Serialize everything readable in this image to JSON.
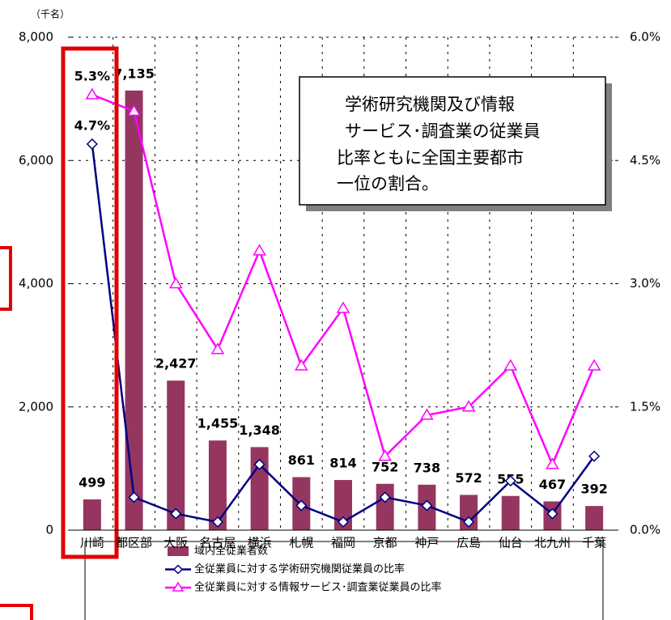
{
  "chart_data": {
    "type": "bar",
    "unit_label": "（千名）",
    "annotation": [
      "学術研究機関及び情報",
      "サービス･調査業の従業員",
      "比率ともに全国主要都市",
      "一位の割合。"
    ],
    "categories": [
      "川崎",
      "都区部",
      "大阪",
      "名古屋",
      "横浜",
      "札幌",
      "福岡",
      "京都",
      "神戸",
      "広島",
      "仙台",
      "北九州",
      "千葉"
    ],
    "series": [
      {
        "name": "域内全従業者数",
        "type": "bar",
        "color": "#953660",
        "values": [
          499,
          7135,
          2427,
          1455,
          1348,
          861,
          814,
          752,
          738,
          572,
          555,
          467,
          392
        ],
        "value_labels": [
          "499",
          "7,135",
          "2,427",
          "1,455",
          "1,348",
          "861",
          "814",
          "752",
          "738",
          "572",
          "555",
          "467",
          "392"
        ]
      },
      {
        "name": "全従業員に対する学術研究機関従業員の比率",
        "type": "line",
        "marker": "diamond",
        "axis": "y2",
        "color": "#000080",
        "values": [
          4.7,
          0.4,
          0.2,
          0.1,
          0.8,
          0.3,
          0.1,
          0.4,
          0.3,
          0.1,
          0.6,
          0.2,
          0.9
        ],
        "value_labels": [
          "4.7%",
          null,
          null,
          null,
          null,
          null,
          null,
          null,
          null,
          null,
          null,
          null,
          null
        ]
      },
      {
        "name": "全従業員に対する情報サービス･調査業従業員の比率",
        "type": "line",
        "marker": "triangle",
        "axis": "y2",
        "color": "#ff00ff",
        "values": [
          5.3,
          5.1,
          3.0,
          2.2,
          3.4,
          2.0,
          2.7,
          0.9,
          1.4,
          1.5,
          2.0,
          0.8,
          2.0
        ],
        "value_labels": [
          "5.3%",
          null,
          null,
          null,
          null,
          null,
          null,
          null,
          null,
          null,
          null,
          null,
          null
        ]
      }
    ],
    "ylim": [
      0,
      8000
    ],
    "yticks": [
      0,
      {
        "value": 2000,
        "label": "2,000"
      },
      {
        "value": 4000,
        "label": "4,000"
      },
      {
        "value": 6000,
        "label": "6,000"
      },
      {
        "value": 8000,
        "label": "8,000"
      }
    ],
    "y2lim": [
      0,
      6
    ],
    "y2ticks": [
      {
        "value": 0,
        "label": "0.0%"
      },
      {
        "value": 1.5,
        "label": "1.5%"
      },
      {
        "value": 3,
        "label": "3.0%"
      },
      {
        "value": 4.5,
        "label": "4.5%"
      },
      {
        "value": 6,
        "label": "6.0%"
      }
    ],
    "grid": true
  }
}
